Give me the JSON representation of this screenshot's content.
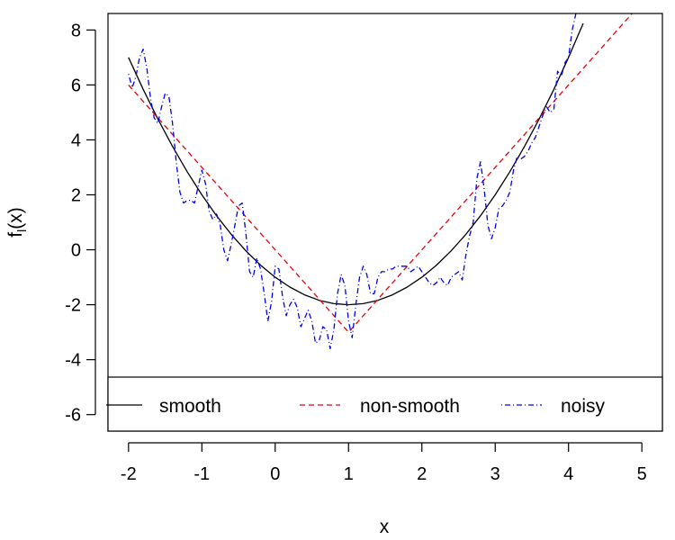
{
  "chart_data": {
    "type": "line",
    "title": "",
    "xlabel": "x",
    "ylabel_main": "f",
    "ylabel_sub": "l",
    "ylabel_tail": "(x)",
    "xlim": [
      -2.28,
      5.28
    ],
    "ylim": [
      -6.6,
      8.6
    ],
    "x_ticks": [
      -2,
      -1,
      0,
      1,
      2,
      3,
      4,
      5
    ],
    "x_tick_labels": [
      "-2",
      "-1",
      "0",
      "1",
      "2",
      "3",
      "4",
      "5"
    ],
    "y_ticks": [
      -6,
      -4,
      -2,
      0,
      2,
      4,
      6,
      8
    ],
    "y_tick_labels": [
      "-6",
      "-4",
      "-2",
      "0",
      "2",
      "4",
      "6",
      "8"
    ],
    "grid": false,
    "legend_placement": "bottom",
    "series": [
      {
        "name": "smooth",
        "color": "#000000",
        "dash": "solid",
        "x": [
          -2.0,
          -1.8,
          -1.6,
          -1.4,
          -1.2,
          -1.0,
          -0.8,
          -0.6,
          -0.4,
          -0.2,
          0.0,
          0.2,
          0.4,
          0.6,
          0.8,
          1.0,
          1.2,
          1.4,
          1.6,
          1.8,
          2.0,
          2.2,
          2.4,
          2.6,
          2.8,
          3.0,
          3.2,
          3.4,
          3.6,
          3.8,
          4.0,
          4.2
        ],
        "y": [
          7.0,
          5.84,
          4.76,
          3.76,
          2.84,
          2.0,
          1.24,
          0.56,
          -0.04,
          -0.56,
          -1.0,
          -1.36,
          -1.64,
          -1.84,
          -1.96,
          -2.0,
          -1.96,
          -1.84,
          -1.64,
          -1.36,
          -1.0,
          -0.56,
          -0.04,
          0.56,
          1.24,
          2.0,
          2.84,
          3.76,
          4.76,
          5.84,
          7.0,
          8.24
        ]
      },
      {
        "name": "non-smooth",
        "color": "#e8000b",
        "dash": "dashed",
        "x": [
          -2.0,
          1.0,
          5.0
        ],
        "y": [
          6.0,
          -3.0,
          9.0
        ]
      },
      {
        "name": "noisy",
        "color": "#0000ee",
        "dash": "dotdash",
        "x": [
          -2.0,
          -1.95,
          -1.9,
          -1.85,
          -1.8,
          -1.75,
          -1.7,
          -1.65,
          -1.6,
          -1.55,
          -1.5,
          -1.45,
          -1.4,
          -1.35,
          -1.3,
          -1.25,
          -1.2,
          -1.15,
          -1.1,
          -1.05,
          -1.0,
          -0.95,
          -0.9,
          -0.85,
          -0.8,
          -0.75,
          -0.7,
          -0.65,
          -0.6,
          -0.55,
          -0.5,
          -0.45,
          -0.4,
          -0.35,
          -0.3,
          -0.25,
          -0.2,
          -0.15,
          -0.1,
          -0.05,
          0.0,
          0.05,
          0.1,
          0.15,
          0.2,
          0.25,
          0.3,
          0.35,
          0.4,
          0.45,
          0.5,
          0.55,
          0.6,
          0.65,
          0.7,
          0.75,
          0.8,
          0.85,
          0.9,
          0.95,
          1.0,
          1.05,
          1.1,
          1.15,
          1.2,
          1.25,
          1.3,
          1.35,
          1.4,
          1.45,
          1.5,
          1.55,
          1.6,
          1.65,
          1.7,
          1.75,
          1.8,
          1.85,
          1.9,
          1.95,
          2.0,
          2.05,
          2.1,
          2.15,
          2.2,
          2.25,
          2.3,
          2.35,
          2.4,
          2.45,
          2.5,
          2.55,
          2.6,
          2.65,
          2.7,
          2.75,
          2.8,
          2.85,
          2.9,
          2.95,
          3.0,
          3.05,
          3.1,
          3.15,
          3.2,
          3.25,
          3.3,
          3.35,
          3.4,
          3.45,
          3.5,
          3.55,
          3.6,
          3.65,
          3.7,
          3.75,
          3.8,
          3.85,
          3.9,
          3.95,
          4.0,
          4.05,
          4.1,
          4.15
        ],
        "y": [
          6.4,
          5.9,
          6.3,
          7.0,
          7.3,
          6.6,
          5.5,
          4.8,
          4.6,
          5.2,
          5.7,
          5.6,
          4.6,
          3.2,
          2.1,
          1.7,
          1.8,
          1.8,
          1.7,
          2.3,
          2.9,
          2.4,
          1.4,
          1.1,
          1.3,
          0.9,
          0.0,
          -0.4,
          0.2,
          0.9,
          1.6,
          1.7,
          0.6,
          -0.8,
          -1.0,
          -0.3,
          -0.7,
          -1.6,
          -2.6,
          -1.9,
          -0.6,
          -0.7,
          -1.7,
          -2.4,
          -2.0,
          -1.8,
          -2.1,
          -2.8,
          -2.5,
          -2.2,
          -2.6,
          -3.4,
          -3.3,
          -2.8,
          -2.9,
          -3.6,
          -2.9,
          -1.6,
          -0.9,
          -1.3,
          -2.6,
          -3.2,
          -2.0,
          -1.0,
          -0.6,
          -0.9,
          -1.6,
          -1.6,
          -1.0,
          -0.8,
          -0.8,
          -0.7,
          -0.7,
          -0.6,
          -0.6,
          -0.6,
          -0.6,
          -0.8,
          -0.7,
          -0.6,
          -0.8,
          -1.0,
          -1.2,
          -1.3,
          -1.2,
          -1.0,
          -1.2,
          -1.3,
          -1.0,
          -0.9,
          -0.8,
          -1.1,
          -0.2,
          0.5,
          1.0,
          2.6,
          3.2,
          2.2,
          0.9,
          0.4,
          0.8,
          1.5,
          1.6,
          1.8,
          2.1,
          2.9,
          3.4,
          3.3,
          3.4,
          3.6,
          3.9,
          4.1,
          4.5,
          4.9,
          5.2,
          5.0,
          5.1,
          6.5,
          6.3,
          6.8,
          7.0,
          8.0,
          8.6,
          8.6
        ]
      }
    ]
  }
}
